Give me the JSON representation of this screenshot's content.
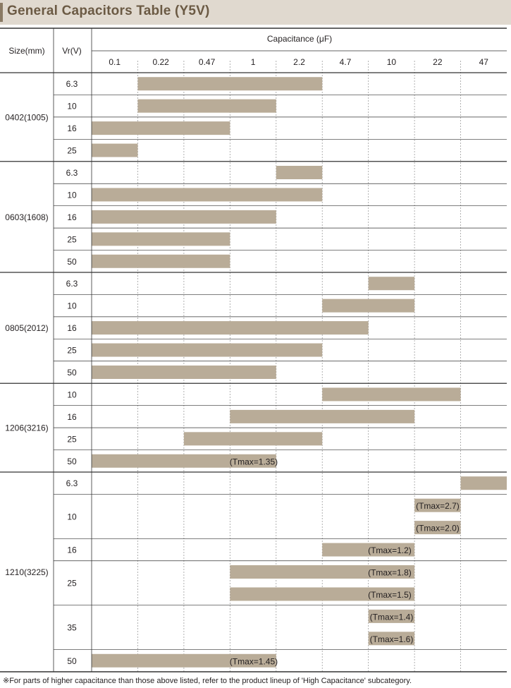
{
  "title": "General Capacitors Table (Y5V)",
  "footnote": "※For parts of higher capacitance than those above listed, refer to the product lineup of 'High Capacitance' subcategory.",
  "colors": {
    "bar": "#b9ac98",
    "title_band": "#e0d9cf",
    "title_text": "#6b5a44",
    "grid": "#9d9d9d",
    "border": "#333333"
  },
  "chart_data": {
    "type": "table",
    "headers": {
      "size": "Size(mm)",
      "voltage": "Vr(V)",
      "capacitance": "Capacitance (μF)"
    },
    "categories": [
      "0.1",
      "0.22",
      "0.47",
      "1",
      "2.2",
      "4.7",
      "10",
      "22",
      "47"
    ],
    "groups": [
      {
        "size": "0402(1005)",
        "rows": [
          {
            "vr": "6.3",
            "bars": [
              {
                "from": "0.22",
                "to": "2.2"
              }
            ]
          },
          {
            "vr": "10",
            "bars": [
              {
                "from": "0.22",
                "to": "1"
              }
            ]
          },
          {
            "vr": "16",
            "bars": [
              {
                "from": "0.1",
                "to": "0.47"
              }
            ]
          },
          {
            "vr": "25",
            "bars": [
              {
                "from": "0.1",
                "to": "0.1"
              }
            ]
          }
        ]
      },
      {
        "size": "0603(1608)",
        "rows": [
          {
            "vr": "6.3",
            "bars": [
              {
                "from": "2.2",
                "to": "2.2"
              }
            ]
          },
          {
            "vr": "10",
            "bars": [
              {
                "from": "0.1",
                "to": "2.2"
              }
            ]
          },
          {
            "vr": "16",
            "bars": [
              {
                "from": "0.1",
                "to": "1"
              }
            ]
          },
          {
            "vr": "25",
            "bars": [
              {
                "from": "0.1",
                "to": "0.47"
              }
            ]
          },
          {
            "vr": "50",
            "bars": [
              {
                "from": "0.1",
                "to": "0.47"
              }
            ]
          }
        ]
      },
      {
        "size": "0805(2012)",
        "rows": [
          {
            "vr": "6.3",
            "bars": [
              {
                "from": "10",
                "to": "10"
              }
            ]
          },
          {
            "vr": "10",
            "bars": [
              {
                "from": "4.7",
                "to": "10"
              }
            ]
          },
          {
            "vr": "16",
            "bars": [
              {
                "from": "0.1",
                "to": "4.7"
              }
            ]
          },
          {
            "vr": "25",
            "bars": [
              {
                "from": "0.1",
                "to": "2.2"
              }
            ]
          },
          {
            "vr": "50",
            "bars": [
              {
                "from": "0.1",
                "to": "1"
              }
            ]
          }
        ]
      },
      {
        "size": "1206(3216)",
        "rows": [
          {
            "vr": "10",
            "bars": [
              {
                "from": "4.7",
                "to": "22"
              }
            ]
          },
          {
            "vr": "16",
            "bars": [
              {
                "from": "1",
                "to": "10"
              }
            ]
          },
          {
            "vr": "25",
            "bars": [
              {
                "from": "0.47",
                "to": "2.2"
              }
            ]
          },
          {
            "vr": "50",
            "bars": [
              {
                "from": "0.1",
                "to": "1",
                "label": "(Tmax=1.35)"
              }
            ]
          }
        ]
      },
      {
        "size": "1210(3225)",
        "rows": [
          {
            "vr": "6.3",
            "bars": [
              {
                "from": "47",
                "to": "47"
              }
            ]
          },
          {
            "vr": "10",
            "bars": [
              {
                "from": "22",
                "to": "22",
                "label": "(Tmax=2.7)"
              },
              {
                "from": "22",
                "to": "22",
                "label": "(Tmax=2.0)"
              }
            ]
          },
          {
            "vr": "16",
            "bars": [
              {
                "from": "4.7",
                "to": "10",
                "label": "(Tmax=1.2)"
              }
            ]
          },
          {
            "vr": "25",
            "bars": [
              {
                "from": "1",
                "to": "10",
                "label": "(Tmax=1.8)"
              },
              {
                "from": "1",
                "to": "10",
                "label": "(Tmax=1.5)"
              }
            ]
          },
          {
            "vr": "35",
            "bars": [
              {
                "from": "10",
                "to": "10",
                "label": "(Tmax=1.4)"
              },
              {
                "from": "10",
                "to": "10",
                "label": "(Tmax=1.6)"
              }
            ]
          },
          {
            "vr": "50",
            "bars": [
              {
                "from": "0.1",
                "to": "1",
                "label": "(Tmax=1.45)"
              }
            ]
          }
        ]
      }
    ]
  }
}
